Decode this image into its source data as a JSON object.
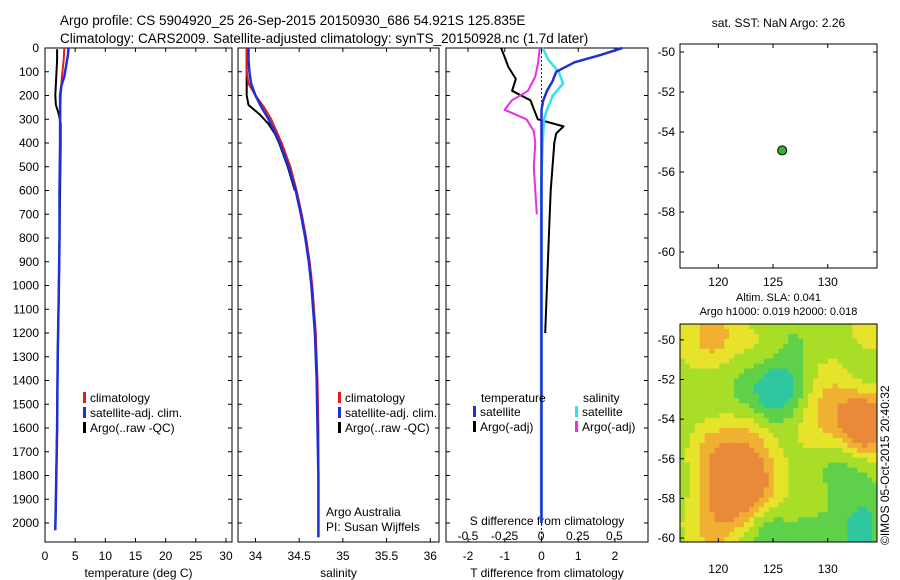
{
  "header": {
    "line1": "Argo profile: CS 5904920_25 26-Sep-2015 20150930_686 54.921S 125.835E",
    "line2": "Climatology: CARS2009. Satellite-adjusted climatology: synTS_20150928.nc (1.7d later)"
  },
  "colors": {
    "climatology": "#e41a1c",
    "satellite": "#1f2fd6",
    "argo": "#000000",
    "satellite_diff": "#33e0ee",
    "argo_salinity_diff": "#e62ee6"
  },
  "credit": {
    "argo_australia": "Argo Australia",
    "pi": "PI: Susan Wijffels",
    "imos": "©IMOS 05-Oct-2015 20:40:32"
  },
  "chart_data": [
    {
      "type": "line",
      "name": "temperature-profile",
      "xlabel": "temperature (deg C)",
      "xlim": [
        0,
        31
      ],
      "xticks": [
        "0",
        "5",
        "10",
        "15",
        "20",
        "25",
        "30"
      ],
      "ylim": [
        2080,
        0
      ],
      "yticks": [
        "0",
        "100",
        "200",
        "300",
        "400",
        "500",
        "600",
        "700",
        "800",
        "900",
        "1000",
        "1100",
        "1200",
        "1300",
        "1400",
        "1500",
        "1600",
        "1700",
        "1800",
        "1900",
        "2000"
      ],
      "legend": [
        "climatology",
        "satellite-adj. clim.",
        "Argo(..raw -QC)"
      ],
      "series": [
        {
          "name": "climatology",
          "depth": [
            0,
            50,
            120,
            200,
            300,
            400,
            600,
            800,
            1000,
            1300,
            1600,
            1900,
            2030
          ],
          "values": [
            3.2,
            3.1,
            2.8,
            2.6,
            2.5,
            2.5,
            2.4,
            2.4,
            2.3,
            2.1,
            2.0,
            1.8,
            1.7
          ]
        },
        {
          "name": "satellite-adj. clim.",
          "depth": [
            0,
            30,
            60,
            120,
            160,
            200,
            300,
            400,
            600,
            800,
            1000,
            1300,
            1600,
            1900,
            2030
          ],
          "values": [
            3.9,
            3.8,
            3.6,
            3.2,
            2.7,
            2.5,
            2.5,
            2.5,
            2.4,
            2.4,
            2.3,
            2.1,
            2.0,
            1.8,
            1.7
          ]
        },
        {
          "name": "Argo(..raw -QC)",
          "depth": [
            5,
            50,
            100,
            150,
            200,
            240,
            280,
            320,
            400,
            600,
            800,
            1000,
            1300,
            1600,
            1900,
            2030
          ],
          "values": [
            2.0,
            2.0,
            1.9,
            1.8,
            1.7,
            1.8,
            2.3,
            2.6,
            2.6,
            2.5,
            2.4,
            2.3,
            2.1,
            2.0,
            1.8,
            1.7
          ]
        }
      ]
    },
    {
      "type": "line",
      "name": "salinity-profile",
      "xlabel": "salinity",
      "xlim": [
        33.8,
        36.1
      ],
      "xticks": [
        "34",
        "34.5",
        "35",
        "35.5",
        "36"
      ],
      "ylim": [
        2080,
        0
      ],
      "legend": [
        "climatology",
        "satellite-adj. clim.",
        "Argo(..raw -QC)"
      ],
      "series": [
        {
          "name": "climatology",
          "depth": [
            0,
            50,
            100,
            150,
            200,
            250,
            300,
            400,
            500,
            600,
            700,
            800,
            900,
            1000,
            1200,
            1400,
            1600,
            1800,
            2000,
            2060
          ],
          "values": [
            33.9,
            33.9,
            33.9,
            33.92,
            34.0,
            34.1,
            34.18,
            34.3,
            34.4,
            34.47,
            34.53,
            34.58,
            34.62,
            34.65,
            34.69,
            34.71,
            34.72,
            34.72,
            34.72,
            34.72
          ]
        },
        {
          "name": "satellite-adj. clim.",
          "depth": [
            0,
            50,
            100,
            150,
            200,
            250,
            300,
            400,
            500,
            600,
            700,
            800,
            900,
            1000,
            1200,
            1400,
            1600,
            1800,
            2000,
            2060
          ],
          "values": [
            33.92,
            33.92,
            33.93,
            33.95,
            34.0,
            34.07,
            34.15,
            34.28,
            34.38,
            34.46,
            34.52,
            34.57,
            34.61,
            34.64,
            34.68,
            34.7,
            34.71,
            34.72,
            34.72,
            34.72
          ]
        },
        {
          "name": "Argo(..raw -QC)",
          "depth": [
            5,
            50,
            100,
            150,
            200,
            240,
            280,
            320,
            360,
            400,
            500,
            600
          ],
          "values": [
            33.9,
            33.9,
            33.9,
            33.9,
            33.9,
            33.92,
            34.05,
            34.15,
            34.22,
            34.27,
            34.37,
            34.45
          ]
        }
      ]
    },
    {
      "type": "line",
      "name": "difference-profile",
      "xlabel": "T difference from climatology",
      "xlabel_top": "S difference from climatology",
      "t_xlim": [
        -2.6,
        2.9
      ],
      "t_xticks": [
        "-2",
        "-1",
        "0",
        "1",
        "2"
      ],
      "s_xticks": [
        "-0.5",
        "-0.25",
        "0",
        "0.25",
        "0.5"
      ],
      "ylim": [
        2080,
        0
      ],
      "legend": {
        "temperature_heading": "temperature",
        "salinity_heading": "salinity",
        "entries": [
          "satellite",
          "Argo(-adj)",
          "satellite",
          "Argo(-adj)"
        ]
      },
      "series": [
        {
          "name": "temperature satellite",
          "depth": [
            0,
            30,
            60,
            100,
            140,
            180,
            220,
            260,
            300,
            400,
            600,
            1000,
            1500,
            2000
          ],
          "values": [
            2.2,
            1.6,
            0.9,
            0.4,
            0.3,
            0.15,
            0.05,
            0.0,
            0.0,
            0.0,
            0.0,
            0.0,
            0.0,
            0.0
          ]
        },
        {
          "name": "temperature Argo(-adj)",
          "depth": [
            0,
            40,
            80,
            130,
            180,
            220,
            260,
            300,
            330,
            360,
            400,
            500,
            600,
            800,
            1000,
            1200
          ],
          "values": [
            -1.1,
            -1.0,
            -0.9,
            -0.7,
            -0.8,
            -0.3,
            -0.2,
            -0.1,
            0.6,
            0.4,
            0.35,
            0.3,
            0.25,
            0.2,
            0.15,
            0.1
          ]
        },
        {
          "name": "salinity satellite",
          "depth": [
            0,
            50,
            100,
            150,
            200,
            260,
            300,
            400,
            600,
            900,
            1500,
            2000
          ],
          "values": [
            0.01,
            0.05,
            0.12,
            0.15,
            0.08,
            0.04,
            0.02,
            0.01,
            0.0,
            0.0,
            0.0,
            0.0
          ]
        },
        {
          "name": "salinity Argo(-adj)",
          "depth": [
            0,
            60,
            120,
            180,
            220,
            260,
            300,
            350,
            400,
            500,
            600,
            700
          ],
          "values": [
            -0.01,
            -0.02,
            -0.04,
            -0.09,
            -0.2,
            -0.25,
            -0.1,
            -0.05,
            -0.04,
            -0.05,
            -0.04,
            -0.03
          ]
        }
      ]
    },
    {
      "type": "scatter",
      "name": "location-map",
      "title": "sat. SST: NaN Argo: 2.26",
      "xlim": [
        116.5,
        134.5
      ],
      "ylim": [
        -60.8,
        -49.6
      ],
      "xticks": [
        "120",
        "125",
        "130"
      ],
      "yticks": [
        "-50",
        "-52",
        "-54",
        "-56",
        "-58",
        "-60"
      ],
      "points": [
        {
          "x": 125.835,
          "y": -54.921
        }
      ]
    },
    {
      "type": "heatmap",
      "name": "sla-map",
      "title_line1": "Altim. SLA: 0.041",
      "title_line2": "Argo h1000: 0.019 h2000: 0.018",
      "xlim": [
        116.5,
        134.5
      ],
      "ylim": [
        -60.2,
        -49.2
      ],
      "xticks": [
        "120",
        "125",
        "130"
      ],
      "yticks": [
        "-50",
        "-52",
        "-54",
        "-56",
        "-58",
        "-60"
      ],
      "colormap": [
        "#18a0d8",
        "#2ec7a0",
        "#5fd04a",
        "#a8dd28",
        "#e7e32a",
        "#f0b032",
        "#e88a3a"
      ]
    }
  ]
}
